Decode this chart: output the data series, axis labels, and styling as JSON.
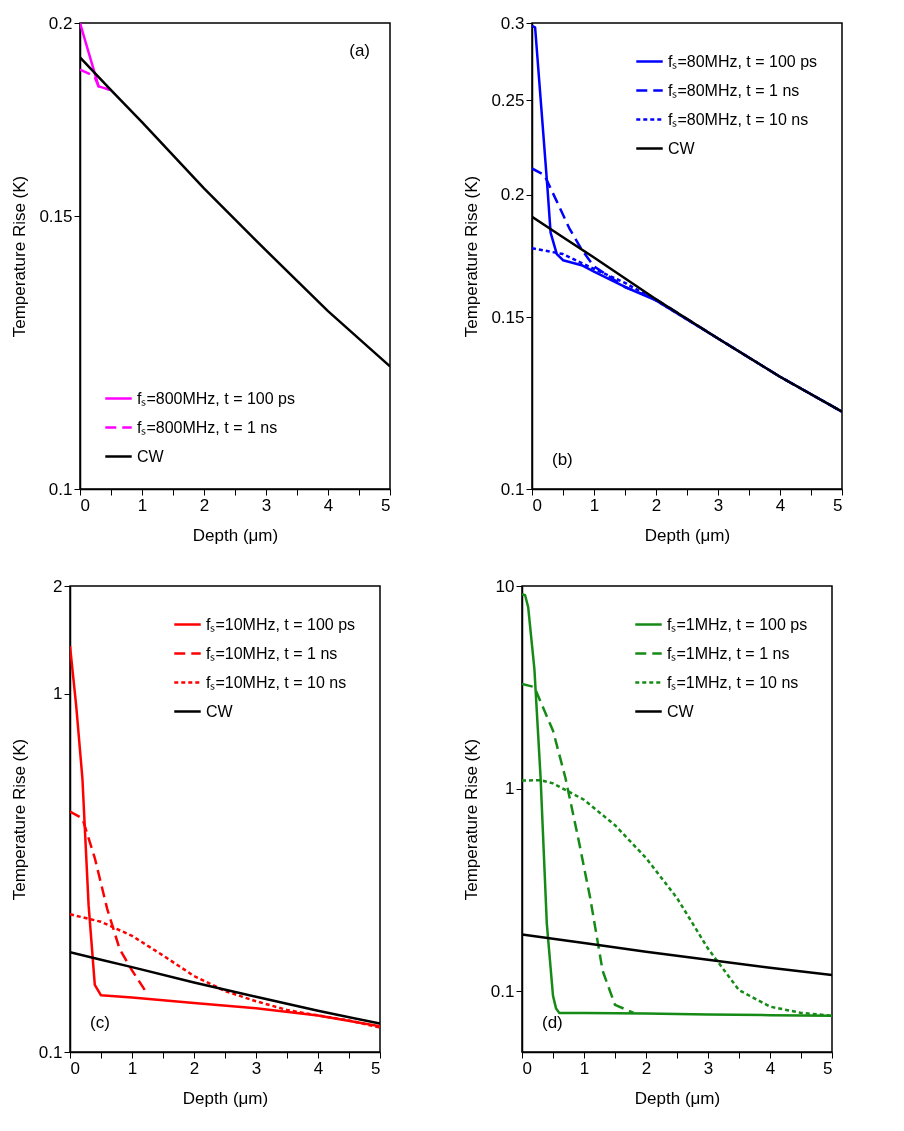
{
  "chart_data": [
    {
      "type": "line",
      "xlabel": "Depth (μm)",
      "ylabel": "Temperature Rise (K)",
      "log": "y",
      "xlim": [
        0,
        5
      ],
      "ylim": [
        0.1,
        0.2
      ],
      "xticks": [
        0,
        {
          "value": 0.5,
          "label": null
        },
        1,
        {
          "value": 1.5,
          "label": null
        },
        2,
        {
          "value": 2.5,
          "label": null
        },
        3,
        {
          "value": 3.5,
          "label": null
        },
        4,
        {
          "value": 4.5,
          "label": null
        },
        5
      ],
      "yticks": [
        0.1,
        0.15,
        0.2
      ],
      "legend": "bottom left",
      "annotations": [
        "(a)"
      ],
      "series": [
        {
          "name": "fₛ=800MHz, t = 100 ps",
          "color": "#ff00ff",
          "line_style": "solid",
          "x": [
            0,
            0.3,
            0.5
          ],
          "values": [
            0.2,
            0.182,
            0.181
          ]
        },
        {
          "name": "fₛ=800MHz, t = 1 ns",
          "color": "#ff00ff",
          "line_style": "dashed",
          "x": [
            0,
            0.23,
            0.3,
            0.5
          ],
          "values": [
            0.1866,
            0.1848,
            0.182,
            0.181
          ]
        },
        {
          "name": "CW",
          "color": "#000000",
          "line_style": "solid",
          "x": [
            0,
            0.5,
            1,
            2,
            3,
            4,
            5
          ],
          "values": [
            0.19,
            0.181,
            0.1726,
            0.1564,
            0.1426,
            0.1303,
            0.12
          ]
        }
      ]
    },
    {
      "type": "line",
      "xlabel": "Depth (μm)",
      "ylabel": "Temperature Rise (K)",
      "log": "y",
      "xlim": [
        0,
        5
      ],
      "ylim": [
        0.1,
        0.3
      ],
      "xticks": [
        0,
        {
          "value": 0.5,
          "label": null
        },
        1,
        {
          "value": 1.5,
          "label": null
        },
        2,
        {
          "value": 2.5,
          "label": null
        },
        3,
        {
          "value": 3.5,
          "label": null
        },
        4,
        {
          "value": 4.5,
          "label": null
        },
        5
      ],
      "yticks": [
        0.1,
        0.15,
        0.2,
        0.25,
        0.3
      ],
      "legend": "top right",
      "annotations": [
        "(b)"
      ],
      "series": [
        {
          "name": "fₛ=80MHz, t = 100 ps",
          "color": "#0000ff",
          "line_style": "solid",
          "x": [
            0,
            0.05,
            0.15,
            0.25,
            0.3,
            0.4,
            0.5,
            0.8,
            1,
            1.5,
            2,
            3,
            4,
            5
          ],
          "values": [
            0.298,
            0.297,
            0.2457,
            0.203,
            0.183,
            0.174,
            0.1715,
            0.1695,
            0.1669,
            0.161,
            0.156,
            0.1426,
            0.1303,
            0.12
          ]
        },
        {
          "name": "fₛ=80MHz, t = 1 ns",
          "color": "#0000ff",
          "line_style": "dashed",
          "x": [
            0,
            0.2,
            0.4,
            0.6,
            0.8,
            1,
            1.5,
            2,
            3,
            4,
            5
          ],
          "values": [
            0.2129,
            0.2096,
            0.197,
            0.185,
            0.1759,
            0.169,
            0.161,
            0.1564,
            0.1426,
            0.1303,
            0.12
          ]
        },
        {
          "name": "fₛ=80MHz, t = 10 ns",
          "color": "#0000ff",
          "line_style": "dotted",
          "x": [
            0,
            0.5,
            1,
            1.5,
            2,
            3,
            4,
            5
          ],
          "values": [
            0.1764,
            0.174,
            0.168,
            0.1626,
            0.156,
            0.1426,
            0.1303,
            0.12
          ]
        },
        {
          "name": "CW",
          "color": "#000000",
          "line_style": "solid",
          "x": [
            0,
            0.5,
            1,
            2,
            3,
            4,
            5
          ],
          "values": [
            0.19,
            0.181,
            0.1726,
            0.1564,
            0.1426,
            0.1303,
            0.12
          ]
        }
      ]
    },
    {
      "type": "line",
      "xlabel": "Depth (μm)",
      "ylabel": "Temperature Rise (K)",
      "log": "y",
      "xlim": [
        0,
        5
      ],
      "ylim": [
        0.1,
        2
      ],
      "xticks": [
        0,
        {
          "value": 0.5,
          "label": null
        },
        1,
        {
          "value": 1.5,
          "label": null
        },
        2,
        {
          "value": 2.5,
          "label": null
        },
        3,
        {
          "value": 3.5,
          "label": null
        },
        4,
        {
          "value": 4.5,
          "label": null
        },
        5
      ],
      "yticks": [
        0.1,
        1,
        2
      ],
      "legend": "top right",
      "annotations": [
        "(c)"
      ],
      "series": [
        {
          "name": "fₛ=10MHz, t = 100 ps",
          "color": "#ff0000",
          "line_style": "solid",
          "x": [
            0,
            0.1,
            0.2,
            0.3,
            0.4,
            0.5,
            1,
            2,
            3,
            4,
            5
          ],
          "values": [
            1.36,
            0.926,
            0.581,
            0.257,
            0.154,
            0.144,
            0.142,
            0.137,
            0.1325,
            0.1265,
            0.118
          ]
        },
        {
          "name": "fₛ=10MHz, t = 1 ns",
          "color": "#ff0000",
          "line_style": "dashed",
          "x": [
            0,
            0.2,
            0.4,
            0.6,
            0.8,
            1,
            1.25
          ],
          "values": [
            0.469,
            0.449,
            0.348,
            0.251,
            0.194,
            0.169,
            0.145
          ]
        },
        {
          "name": "fₛ=10MHz, t = 10 ns",
          "color": "#ff0000",
          "line_style": "dotted",
          "x": [
            0,
            0.5,
            1,
            1.5,
            2,
            2.5,
            3,
            3.5,
            4,
            4.5,
            5
          ],
          "values": [
            0.2424,
            0.231,
            0.211,
            0.186,
            0.163,
            0.148,
            0.1386,
            0.131,
            0.1265,
            0.1225,
            0.117
          ]
        },
        {
          "name": "CW",
          "color": "#000000",
          "line_style": "solid",
          "x": [
            0,
            0.5,
            1,
            2,
            3,
            4,
            5
          ],
          "values": [
            0.19,
            0.181,
            0.1726,
            0.1564,
            0.1426,
            0.1303,
            0.12
          ]
        }
      ]
    },
    {
      "type": "line",
      "xlabel": "Depth (μm)",
      "ylabel": "Temperature Rise (K)",
      "log": "y",
      "xlim": [
        0,
        5
      ],
      "ylim": [
        0.05,
        10
      ],
      "xticks": [
        0,
        {
          "value": 0.5,
          "label": null
        },
        1,
        {
          "value": 1.5,
          "label": null
        },
        2,
        {
          "value": 2.5,
          "label": null
        },
        3,
        {
          "value": 3.5,
          "label": null
        },
        4,
        {
          "value": 4.5,
          "label": null
        },
        5
      ],
      "yticks": [
        0.1,
        1,
        10
      ],
      "legend": "top right",
      "annotations": [
        "(d)"
      ],
      "series": [
        {
          "name": "fₛ=1MHz, t = 100 ps",
          "color": "#168a16",
          "line_style": "solid",
          "x": [
            0,
            0.05,
            0.1,
            0.2,
            0.3,
            0.4,
            0.5,
            0.55,
            0.6,
            1,
            2,
            3,
            4,
            5
          ],
          "values": [
            9.1,
            9.0,
            7.85,
            3.89,
            1.13,
            0.216,
            0.0948,
            0.0819,
            0.078,
            0.0778,
            0.0775,
            0.0766,
            0.076,
            0.0755
          ]
        },
        {
          "name": "fₛ=1MHz, t = 1 ns",
          "color": "#168a16",
          "line_style": "dashed",
          "x": [
            0,
            0.2,
            0.3,
            0.5,
            0.7,
            0.9,
            1.1,
            1.3,
            1.5,
            1.8
          ],
          "values": [
            3.28,
            3.17,
            2.68,
            1.93,
            1.13,
            0.582,
            0.288,
            0.126,
            0.0855,
            0.078
          ]
        },
        {
          "name": "fₛ=1MHz, t = 10 ns",
          "color": "#168a16",
          "line_style": "dotted",
          "x": [
            0,
            0.3,
            0.5,
            1,
            1.5,
            2,
            2.5,
            3,
            3.5,
            4,
            4.5,
            5
          ],
          "values": [
            1.095,
            1.1,
            1.06,
            0.88,
            0.659,
            0.454,
            0.288,
            0.162,
            0.101,
            0.0838,
            0.078,
            0.0755
          ]
        },
        {
          "name": "CW",
          "color": "#000000",
          "line_style": "solid",
          "x": [
            0,
            0.5,
            1,
            2,
            3,
            4,
            5
          ],
          "values": [
            0.19,
            0.181,
            0.1726,
            0.1564,
            0.1426,
            0.1303,
            0.12
          ]
        }
      ]
    }
  ]
}
